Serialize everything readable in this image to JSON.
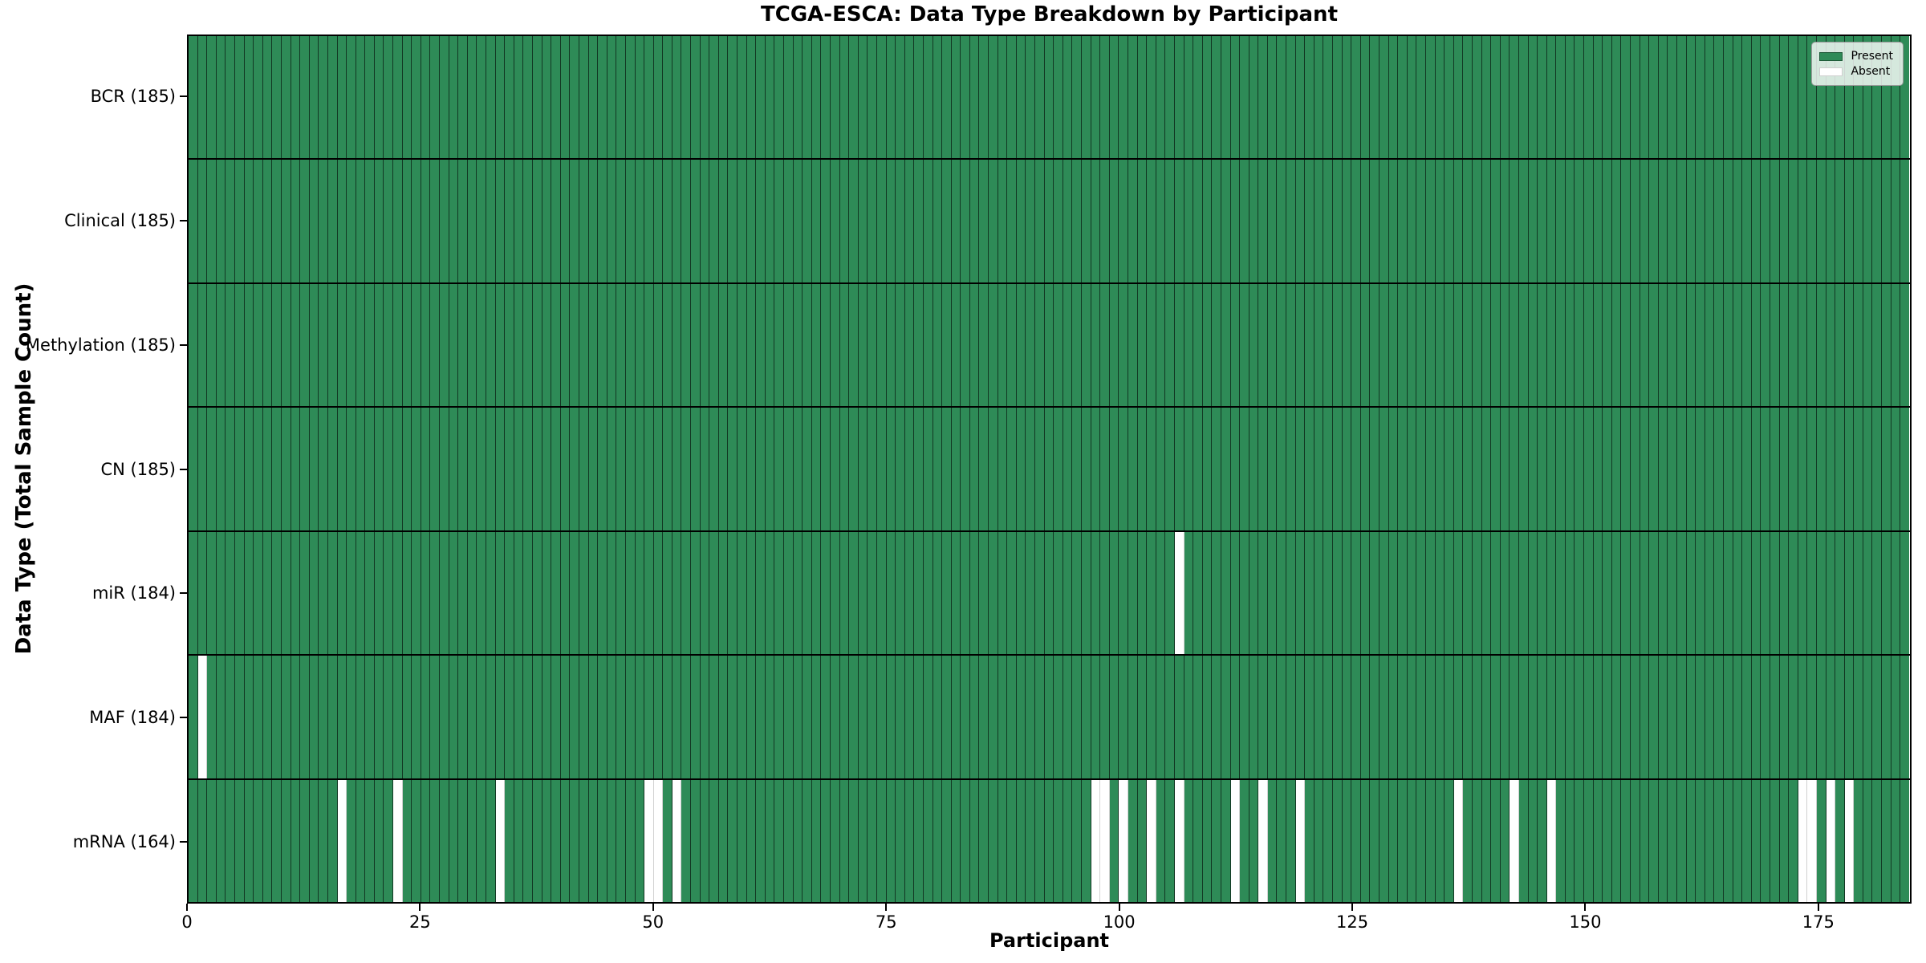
{
  "chart_data": {
    "type": "heatmap",
    "title": "TCGA-ESCA: Data Type Breakdown by Participant",
    "xlabel": "Participant",
    "ylabel": "Data Type (Total Sample Count)",
    "n_participants": 185,
    "x_ticks": [
      0,
      25,
      50,
      75,
      100,
      125,
      150,
      175
    ],
    "x_range": [
      0,
      185
    ],
    "grid": "per-participant vertical cell edges, horizontal row separators",
    "legend_position": "upper right",
    "colors": {
      "present": "#2e8b57",
      "absent": "#ffffff",
      "cell_edge": "rgba(0,0,0,0.6)",
      "absent_edge": "rgba(0,0,0,0.18)",
      "border": "#000000",
      "background": "#ffffff"
    },
    "legend": [
      {
        "label": "Present",
        "color": "#2e8b57"
      },
      {
        "label": "Absent",
        "color": "#ffffff"
      }
    ],
    "rows": [
      {
        "label": "BCR (185)",
        "total": 185,
        "absent_participants": []
      },
      {
        "label": "Clinical (185)",
        "total": 185,
        "absent_participants": []
      },
      {
        "label": "Methylation (185)",
        "total": 185,
        "absent_participants": []
      },
      {
        "label": "CN (185)",
        "total": 185,
        "absent_participants": []
      },
      {
        "label": "miR (184)",
        "total": 184,
        "absent_participants": [
          106
        ]
      },
      {
        "label": "MAF (184)",
        "total": 184,
        "absent_participants": [
          1
        ]
      },
      {
        "label": "mRNA (164)",
        "total": 164,
        "absent_participants": [
          16,
          22,
          33,
          49,
          50,
          52,
          97,
          98,
          100,
          103,
          106,
          112,
          115,
          119,
          136,
          142,
          146,
          173,
          174,
          176,
          178
        ]
      }
    ]
  }
}
